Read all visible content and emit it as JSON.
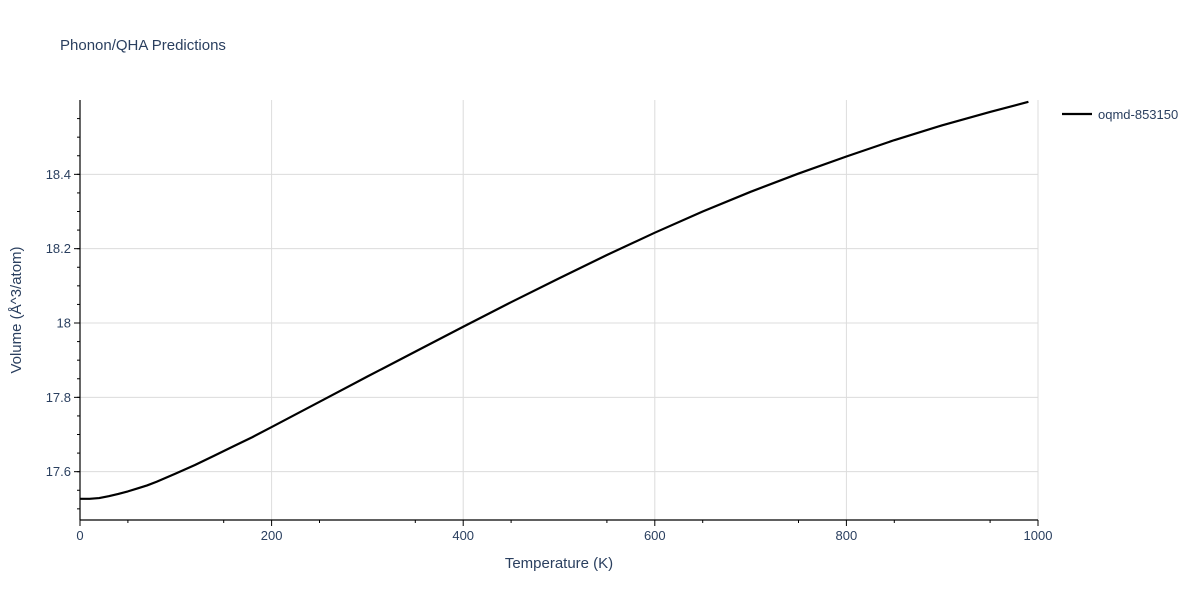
{
  "chart_data": {
    "type": "line",
    "title": "Phonon/QHA Predictions",
    "xlabel": "Temperature (K)",
    "ylabel": "Volume (Å^3/atom)",
    "xlim": [
      0,
      1000
    ],
    "ylim": [
      17.47,
      18.6
    ],
    "x_ticks": [
      0,
      200,
      400,
      600,
      800,
      1000
    ],
    "y_ticks": [
      17.6,
      17.8,
      18.0,
      18.2,
      18.4
    ],
    "x_tick_labels": [
      "0",
      "200",
      "400",
      "600",
      "800",
      "1000"
    ],
    "y_tick_labels": [
      "17.6",
      "17.8",
      "18",
      "18.2",
      "18.4"
    ],
    "grid": true,
    "legend_position": "top-right",
    "series": [
      {
        "name": "oqmd-853150",
        "color": "#000000",
        "x": [
          0,
          10,
          20,
          30,
          40,
          50,
          60,
          70,
          80,
          90,
          100,
          120,
          140,
          160,
          180,
          200,
          250,
          300,
          350,
          400,
          450,
          500,
          550,
          600,
          650,
          700,
          750,
          800,
          850,
          900,
          950,
          990
        ],
        "y": [
          17.527,
          17.527,
          17.529,
          17.534,
          17.54,
          17.547,
          17.555,
          17.563,
          17.573,
          17.584,
          17.595,
          17.618,
          17.643,
          17.668,
          17.693,
          17.72,
          17.788,
          17.856,
          17.923,
          17.99,
          18.056,
          18.12,
          18.183,
          18.243,
          18.3,
          18.353,
          18.402,
          18.448,
          18.492,
          18.532,
          18.568,
          18.595
        ]
      }
    ]
  }
}
